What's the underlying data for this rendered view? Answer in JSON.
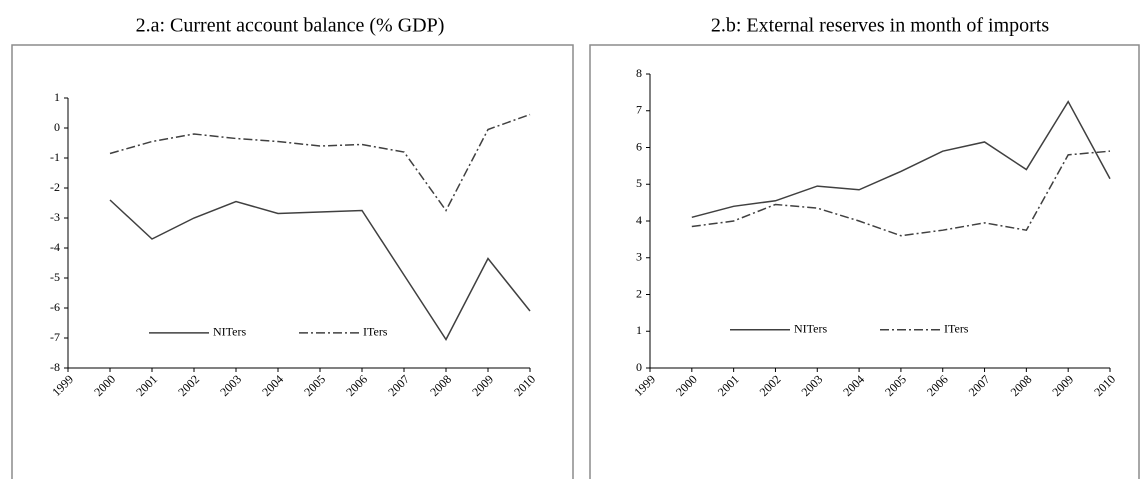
{
  "chart_data": [
    {
      "type": "line",
      "title": "2.a: Current account balance (% GDP)",
      "x": [
        2000,
        2001,
        2002,
        2003,
        2004,
        2005,
        2006,
        2007,
        2008,
        2009,
        2010
      ],
      "xlim": [
        1999,
        2010
      ],
      "xticks": [
        1999,
        2000,
        2001,
        2002,
        2003,
        2004,
        2005,
        2006,
        2007,
        2008,
        2009,
        2010
      ],
      "ylim": [
        -8,
        1
      ],
      "yticks": [
        -8,
        -7,
        -6,
        -5,
        -4,
        -3,
        -2,
        -1,
        0,
        1
      ],
      "legend": "bottom",
      "series": [
        {
          "name": "NITers",
          "color": "#404040",
          "style": "solid",
          "values": [
            -2.4,
            -3.7,
            -3.0,
            -2.45,
            -2.85,
            -2.8,
            -2.75,
            -4.9,
            -7.05,
            -4.35,
            -6.1
          ]
        },
        {
          "name": "ITers",
          "color": "#404040",
          "style": "dashdot",
          "values": [
            -0.85,
            -0.45,
            -0.2,
            -0.35,
            -0.45,
            -0.6,
            -0.55,
            -0.8,
            -2.75,
            -0.05,
            0.45
          ]
        }
      ]
    },
    {
      "type": "line",
      "title": "2.b: External reserves in month of imports",
      "x": [
        2000,
        2001,
        2002,
        2003,
        2004,
        2005,
        2006,
        2007,
        2008,
        2009,
        2010
      ],
      "xlim": [
        1999,
        2010
      ],
      "xticks": [
        1999,
        2000,
        2001,
        2002,
        2003,
        2004,
        2005,
        2006,
        2007,
        2008,
        2009,
        2010
      ],
      "ylim": [
        0,
        8
      ],
      "yticks": [
        0,
        1,
        2,
        3,
        4,
        5,
        6,
        7,
        8
      ],
      "legend": "bottom",
      "series": [
        {
          "name": "NITers",
          "color": "#404040",
          "style": "solid",
          "values": [
            4.1,
            4.4,
            4.55,
            4.95,
            4.85,
            5.35,
            5.9,
            6.15,
            5.4,
            7.25,
            5.15
          ]
        },
        {
          "name": "ITers",
          "color": "#404040",
          "style": "dashdot",
          "values": [
            3.85,
            4.0,
            4.45,
            4.35,
            4.0,
            3.6,
            3.75,
            3.95,
            3.75,
            5.8,
            5.9
          ]
        }
      ]
    }
  ]
}
